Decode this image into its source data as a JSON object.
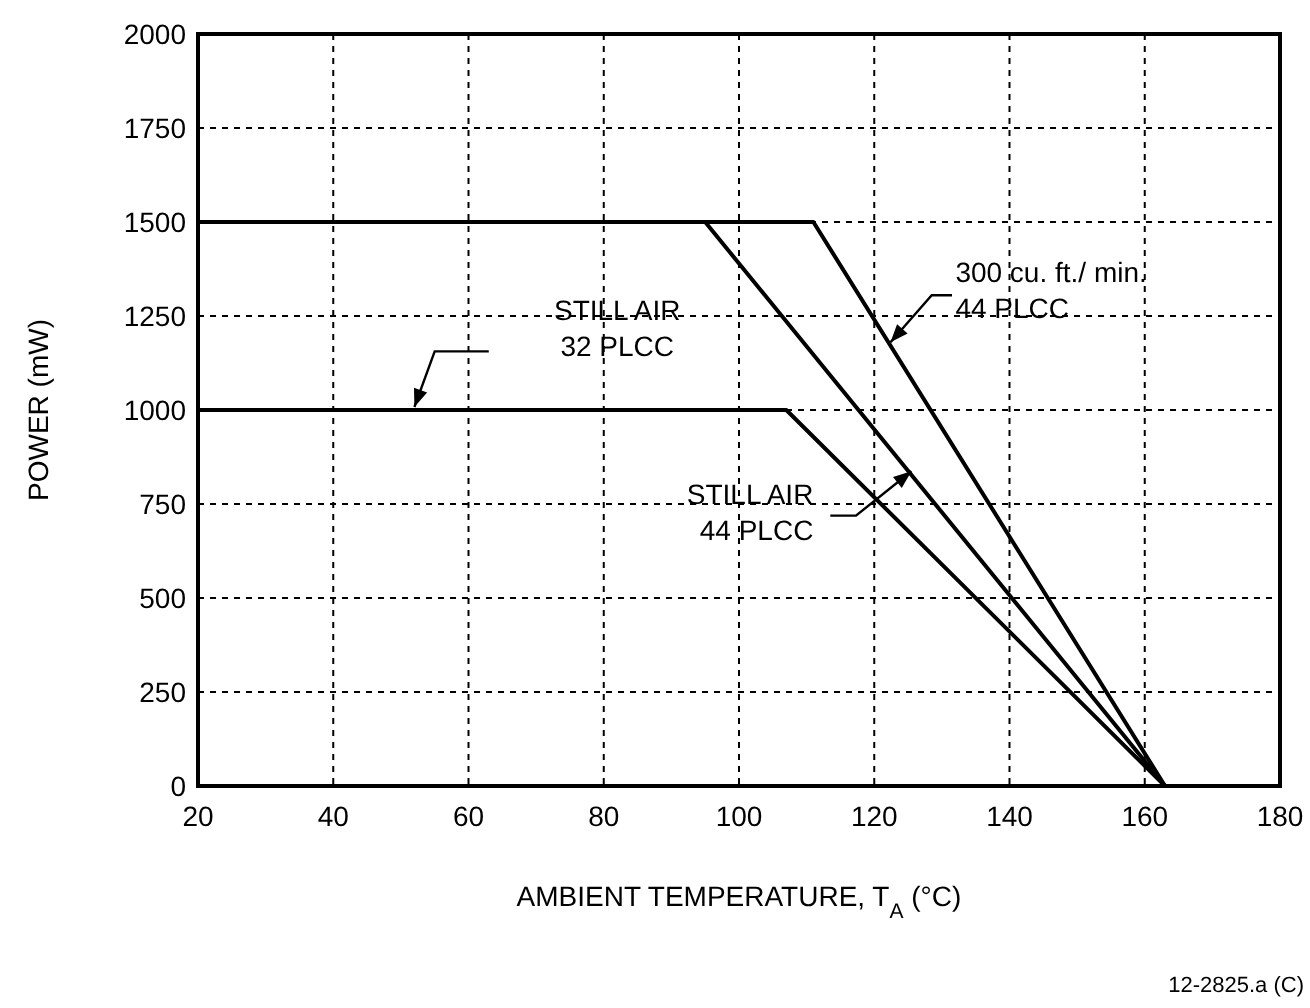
{
  "chart_data": {
    "type": "line",
    "xlabel": "AMBIENT TEMPERATURE, T$_{A}$ (°C)",
    "ylabel": "POWER (mW)",
    "xlim": [
      20,
      180
    ],
    "xticks": [
      20,
      40,
      60,
      80,
      100,
      120,
      140,
      160,
      180
    ],
    "ylim": [
      0,
      2000
    ],
    "yticks": [
      0,
      250,
      500,
      750,
      1000,
      1250,
      1500,
      1750,
      2000
    ],
    "grid": true,
    "line_style": "solid",
    "marker": "none",
    "series": [
      {
        "name": "STILL AIR\n32 PLCC",
        "color": "#000000",
        "x": [
          20,
          107,
          163
        ],
        "values": [
          1000,
          1000,
          0
        ]
      },
      {
        "name": "STILL AIR\n44 PLCC",
        "color": "#000000",
        "x": [
          20,
          95,
          163
        ],
        "values": [
          1500,
          1500,
          0
        ]
      },
      {
        "name": "300 cu. ft./ min.\n44 PLCC",
        "color": "#000000",
        "x": [
          20,
          111,
          163
        ],
        "values": [
          1500,
          1500,
          0
        ]
      }
    ],
    "annotations": [
      "12-2825.a (C)"
    ]
  }
}
